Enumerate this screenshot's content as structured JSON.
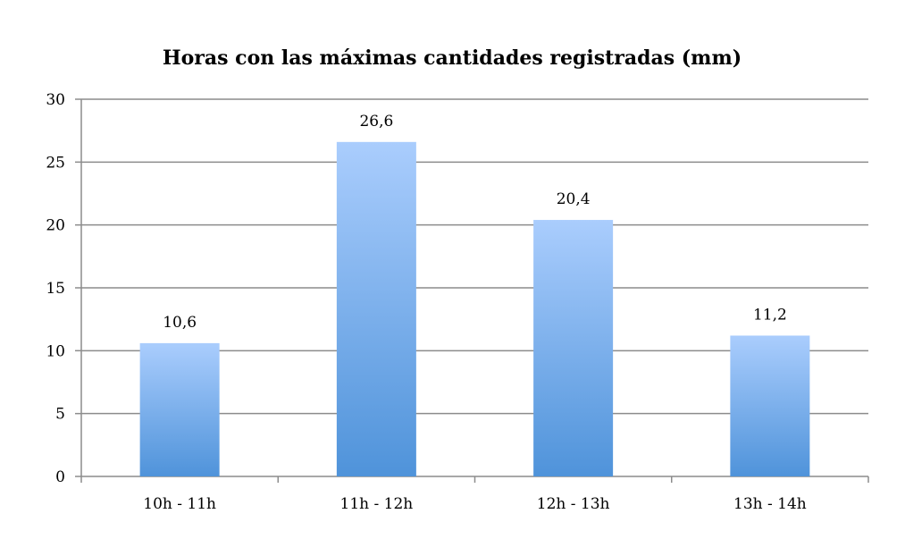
{
  "chart_data": {
    "type": "bar",
    "title": "Horas con las máximas cantidades registradas (mm)",
    "categories": [
      "10h - 11h",
      "11h - 12h",
      "12h - 13h",
      "13h - 14h"
    ],
    "values": [
      10.6,
      26.6,
      20.4,
      11.2
    ],
    "data_labels": [
      "10,6",
      "26,6",
      "20,4",
      "11,2"
    ],
    "xlabel": "",
    "ylabel": "",
    "ylim": [
      0,
      30
    ],
    "yticks": [
      0,
      5,
      10,
      15,
      20,
      25,
      30
    ],
    "grid": true,
    "legend": "none",
    "colors": {
      "bar_top": "#aacdfd",
      "bar_bottom": "#4f93da",
      "grid": "#8c8c8c",
      "axis": "#8c8c8c"
    }
  }
}
